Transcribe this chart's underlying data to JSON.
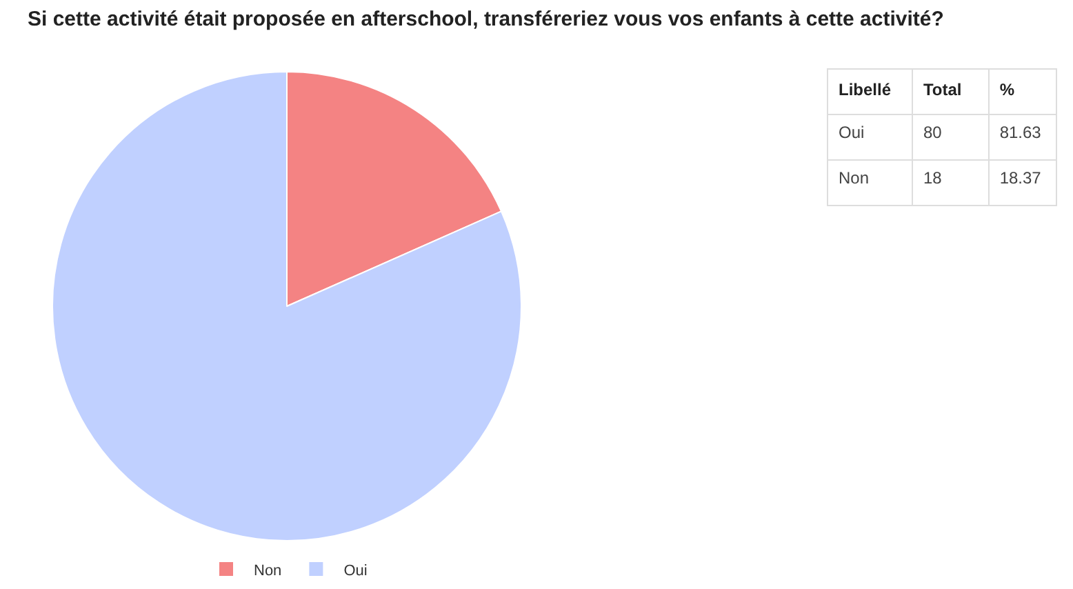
{
  "chart_data": [
    {
      "type": "pie",
      "title": "Si cette activité était proposée en afterschool, transféreriez vous vos enfants à cette activité?",
      "categories": [
        "Non",
        "Oui"
      ],
      "values": [
        18.37,
        81.63
      ],
      "colors": [
        "#f48383",
        "#c0d0ff"
      ],
      "legend": "bottom"
    },
    {
      "type": "other",
      "xlabel": "Libellé",
      "categories": [
        "Oui",
        "Non"
      ],
      "series": [
        {
          "name": "Total",
          "values": [
            80,
            18
          ]
        },
        {
          "name": "%",
          "values": [
            81.63,
            18.37
          ]
        }
      ],
      "data_labels": true
    }
  ]
}
